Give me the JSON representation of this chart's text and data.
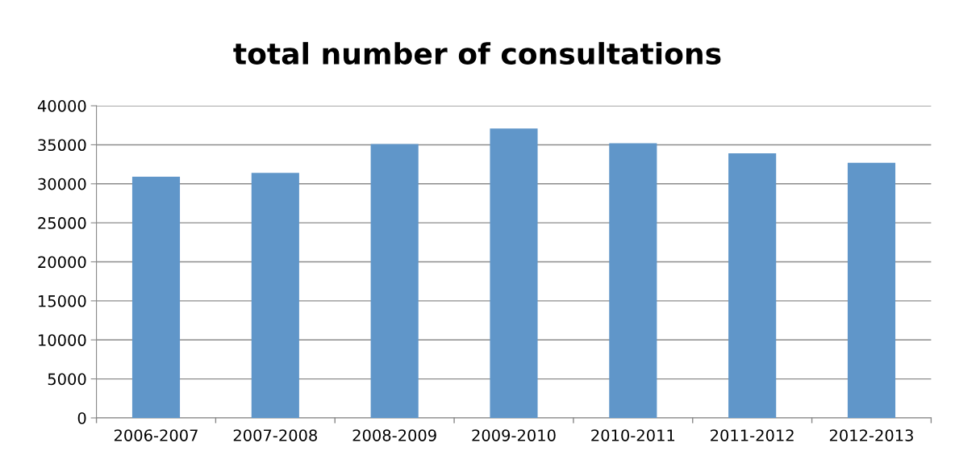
{
  "chart_data": {
    "type": "bar",
    "title": "total number of consultations",
    "categories": [
      "2006-2007",
      "2007-2008",
      "2008-2009",
      "2009-2010",
      "2010-2011",
      "2011-2012",
      "2012-2013"
    ],
    "values": [
      30900,
      31400,
      35100,
      37100,
      35200,
      33900,
      32700
    ],
    "color": "#6096c9",
    "ylim": [
      0,
      40000
    ],
    "yticks": [
      0,
      5000,
      10000,
      15000,
      20000,
      25000,
      30000,
      35000,
      40000
    ],
    "grid": "y"
  }
}
